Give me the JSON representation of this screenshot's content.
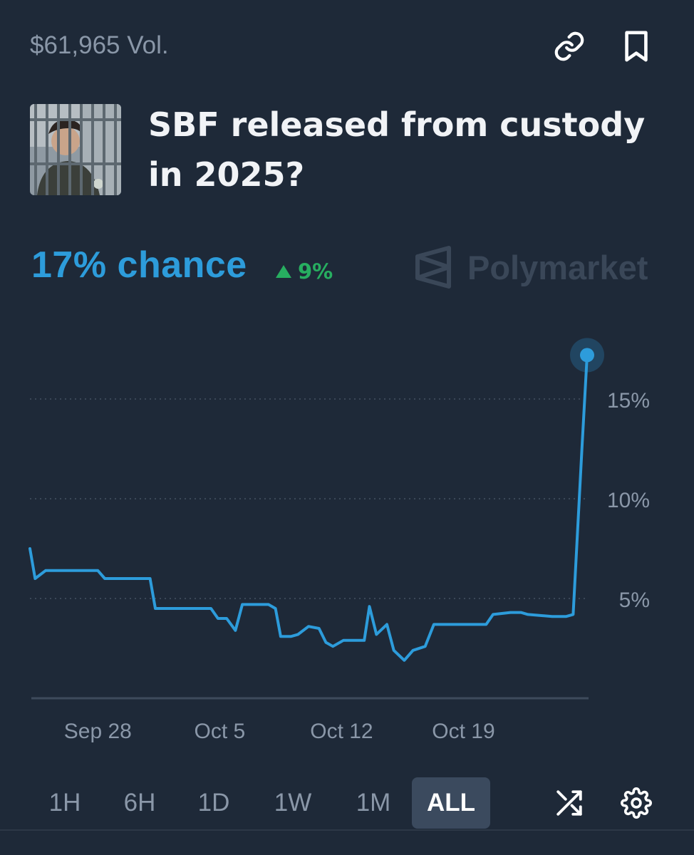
{
  "header": {
    "volume": "$61,965 Vol.",
    "link_icon": "link-icon",
    "bookmark_icon": "bookmark-icon"
  },
  "market": {
    "title": "SBF released from custody in 2025?",
    "thumbnail": "person-behind-bars-photo",
    "chance": "17% chance",
    "delta": "9%",
    "delta_direction": "up"
  },
  "brand": {
    "name": "Polymarket",
    "icon": "polymarket-logo-icon"
  },
  "colors": {
    "background": "#1e2938",
    "accent": "#2d9cdb",
    "positive": "#27ae60",
    "muted": "#8a97a8"
  },
  "chart_data": {
    "type": "line",
    "series": [
      {
        "values": [
          [
            0,
            7.5
          ],
          [
            0.3,
            6.0
          ],
          [
            0.9,
            6.4
          ],
          [
            3.9,
            6.4
          ],
          [
            4.3,
            6.0
          ],
          [
            6.9,
            6.0
          ],
          [
            7.2,
            4.5
          ],
          [
            10.4,
            4.5
          ],
          [
            10.8,
            4.0
          ],
          [
            11.3,
            4.0
          ],
          [
            11.8,
            3.4
          ],
          [
            12.2,
            4.7
          ],
          [
            13.7,
            4.7
          ],
          [
            14.1,
            4.5
          ],
          [
            14.4,
            3.1
          ],
          [
            15.0,
            3.1
          ],
          [
            15.4,
            3.2
          ],
          [
            16.0,
            3.6
          ],
          [
            16.6,
            3.5
          ],
          [
            17.0,
            2.8
          ],
          [
            17.4,
            2.6
          ],
          [
            18.0,
            2.9
          ],
          [
            18.6,
            2.9
          ],
          [
            19.2,
            2.9
          ],
          [
            19.5,
            4.6
          ],
          [
            19.9,
            3.2
          ],
          [
            20.5,
            3.7
          ],
          [
            20.9,
            2.4
          ],
          [
            21.5,
            1.9
          ],
          [
            22.0,
            2.4
          ],
          [
            22.7,
            2.6
          ],
          [
            23.2,
            3.7
          ],
          [
            25.0,
            3.7
          ],
          [
            26.2,
            3.7
          ],
          [
            26.6,
            4.2
          ],
          [
            27.6,
            4.3
          ],
          [
            28.2,
            4.3
          ],
          [
            28.6,
            4.2
          ],
          [
            30.0,
            4.1
          ],
          [
            30.8,
            4.1
          ],
          [
            31.2,
            4.2
          ],
          [
            31.7,
            12.5
          ],
          [
            32.0,
            17.2
          ]
        ]
      }
    ],
    "x_ticks": [
      "Sep 28",
      "Oct 5",
      "Oct 12",
      "Oct 19"
    ],
    "x_tick_positions": [
      3.9,
      10.9,
      17.9,
      24.9
    ],
    "y_ticks": [
      "5%",
      "10%",
      "15%"
    ],
    "y_tick_values": [
      5,
      10,
      15
    ],
    "xlim": [
      0,
      32
    ],
    "ylim": [
      0,
      20
    ],
    "grid": "horizontal dotted",
    "current_value": 17
  },
  "timeframes": {
    "items": [
      "1H",
      "6H",
      "1D",
      "1W",
      "1M",
      "ALL"
    ],
    "active": "ALL",
    "shuffle_icon": "shuffle-icon",
    "settings_icon": "gear-icon"
  }
}
